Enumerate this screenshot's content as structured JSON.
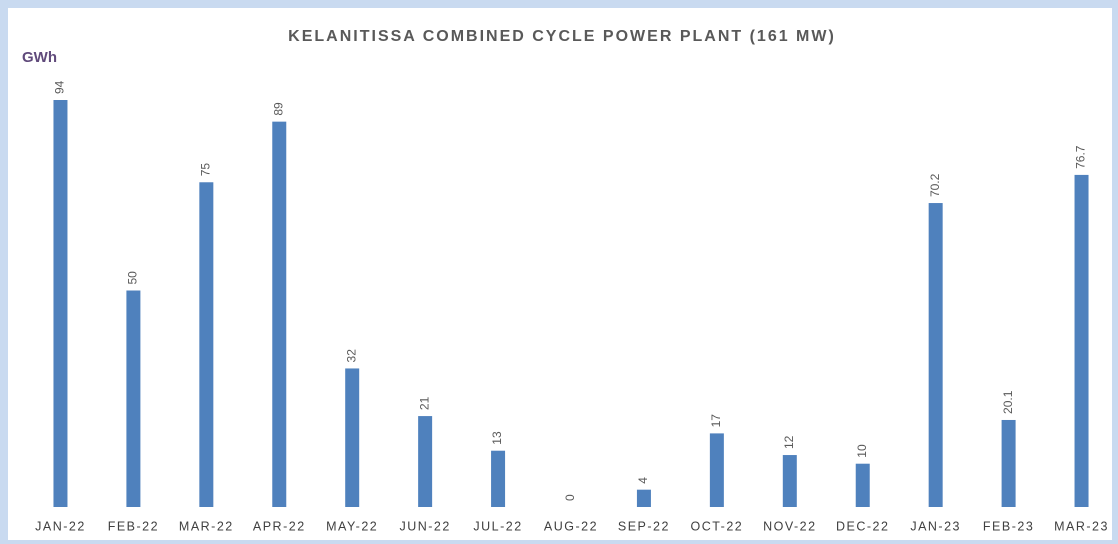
{
  "chart_data": {
    "type": "bar",
    "title": "KELANITISSA COMBINED CYCLE POWER PLANT (161 MW)",
    "y_label": "GWh",
    "categories": [
      "JAN-22",
      "FEB-22",
      "MAR-22",
      "APR-22",
      "MAY-22",
      "JUN-22",
      "JUL-22",
      "AUG-22",
      "SEP-22",
      "OCT-22",
      "NOV-22",
      "DEC-22",
      "JAN-23",
      "FEB-23",
      "MAR-23"
    ],
    "values": [
      94,
      50,
      75,
      89,
      32,
      21,
      13,
      0,
      4,
      17,
      12,
      10,
      70.2,
      20.1,
      76.7
    ],
    "color": "#4f81bd"
  }
}
